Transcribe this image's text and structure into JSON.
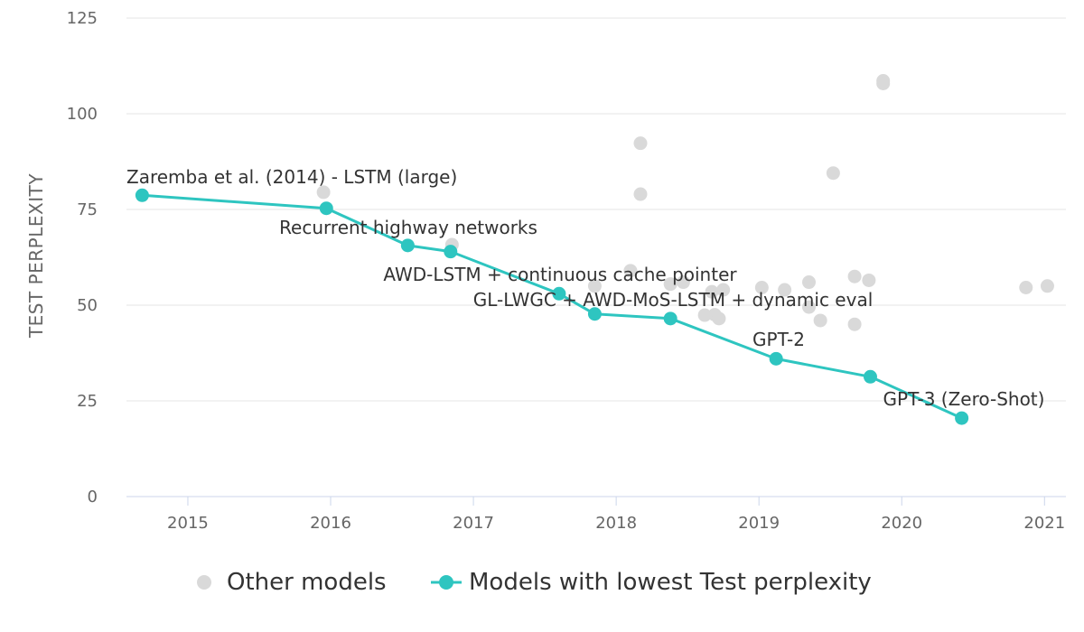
{
  "chart_data": {
    "type": "scatter",
    "xlabel": "",
    "ylabel": "TEST PERPLEXITY",
    "xlim": [
      2014.57,
      2021.15
    ],
    "ylim": [
      0,
      125
    ],
    "xticks": [
      "2015",
      "2016",
      "2017",
      "2018",
      "2019",
      "2020",
      "2021"
    ],
    "yticks": [
      "0",
      "25",
      "50",
      "75",
      "100",
      "125"
    ],
    "grid": true,
    "legend_position": "bottom-center",
    "series": [
      {
        "name": "Other models",
        "color": "#d9d9d9",
        "marker": "circle",
        "points": [
          {
            "x": 2015.95,
            "y": 79.5
          },
          {
            "x": 2016.85,
            "y": 65.8
          },
          {
            "x": 2017.85,
            "y": 55.0
          },
          {
            "x": 2018.1,
            "y": 59.0
          },
          {
            "x": 2018.17,
            "y": 92.3
          },
          {
            "x": 2018.17,
            "y": 79.0
          },
          {
            "x": 2018.38,
            "y": 55.5
          },
          {
            "x": 2018.47,
            "y": 56.0
          },
          {
            "x": 2018.62,
            "y": 47.4
          },
          {
            "x": 2018.67,
            "y": 53.5
          },
          {
            "x": 2018.69,
            "y": 47.5
          },
          {
            "x": 2018.72,
            "y": 46.5
          },
          {
            "x": 2018.75,
            "y": 54.0
          },
          {
            "x": 2019.02,
            "y": 54.6
          },
          {
            "x": 2019.18,
            "y": 54.0
          },
          {
            "x": 2019.35,
            "y": 56.0
          },
          {
            "x": 2019.35,
            "y": 49.5
          },
          {
            "x": 2019.43,
            "y": 46.0
          },
          {
            "x": 2019.52,
            "y": 84.5
          },
          {
            "x": 2019.67,
            "y": 57.5
          },
          {
            "x": 2019.67,
            "y": 45.0
          },
          {
            "x": 2019.77,
            "y": 56.5
          },
          {
            "x": 2019.87,
            "y": 108.6
          },
          {
            "x": 2019.87,
            "y": 107.9
          },
          {
            "x": 2020.87,
            "y": 54.6
          },
          {
            "x": 2021.02,
            "y": 55.0
          }
        ]
      },
      {
        "name": "Models with lowest Test perplexity",
        "color": "#2ec5c0",
        "marker": "circle",
        "points": [
          {
            "x": 2014.68,
            "y": 78.7
          },
          {
            "x": 2015.97,
            "y": 75.3
          },
          {
            "x": 2016.54,
            "y": 65.6
          },
          {
            "x": 2016.84,
            "y": 64.0
          },
          {
            "x": 2017.6,
            "y": 53.0
          },
          {
            "x": 2017.85,
            "y": 47.7
          },
          {
            "x": 2018.38,
            "y": 46.5
          },
          {
            "x": 2019.12,
            "y": 36.0
          },
          {
            "x": 2019.78,
            "y": 31.3
          },
          {
            "x": 2020.42,
            "y": 20.5
          }
        ]
      }
    ],
    "annotations": [
      {
        "text": "Zaremba et al. (2014) - LSTM (large)"
      },
      {
        "text": "Recurrent highway networks"
      },
      {
        "text": "AWD-LSTM + continuous cache pointer"
      },
      {
        "text": "GL-LWGC + AWD-MoS-LSTM + dynamic eval"
      },
      {
        "text": "GPT-2"
      },
      {
        "text": "GPT-3 (Zero-Shot)"
      }
    ]
  }
}
